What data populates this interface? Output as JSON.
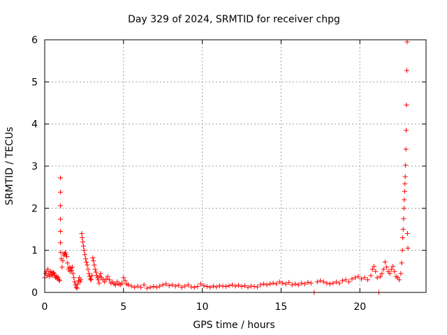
{
  "chart_data": {
    "type": "scatter",
    "title": "Day 329 of 2024, SRMTID for receiver chpg",
    "xlabel": "GPS time / hours",
    "ylabel": "SRMTID / TECUs",
    "xlim": [
      0,
      24.2
    ],
    "ylim": [
      0,
      6
    ],
    "xticks": [
      0,
      5,
      10,
      15,
      20
    ],
    "yticks": [
      0,
      1,
      2,
      3,
      4,
      5,
      6
    ],
    "grid": true,
    "marker": "+",
    "color": "#ff0000",
    "series": [
      {
        "name": "SRMTID",
        "points": [
          [
            0.0,
            0.35
          ],
          [
            0.05,
            0.45
          ],
          [
            0.1,
            0.5
          ],
          [
            0.15,
            0.4
          ],
          [
            0.2,
            0.55
          ],
          [
            0.25,
            0.45
          ],
          [
            0.3,
            0.38
          ],
          [
            0.35,
            0.5
          ],
          [
            0.4,
            0.42
          ],
          [
            0.45,
            0.48
          ],
          [
            0.5,
            0.4
          ],
          [
            0.55,
            0.47
          ],
          [
            0.6,
            0.45
          ],
          [
            0.65,
            0.4
          ],
          [
            0.7,
            0.35
          ],
          [
            0.75,
            0.38
          ],
          [
            0.8,
            0.33
          ],
          [
            0.85,
            0.36
          ],
          [
            0.9,
            0.3
          ],
          [
            0.95,
            0.28
          ],
          [
            1.0,
            2.72
          ],
          [
            1.0,
            2.38
          ],
          [
            1.0,
            2.06
          ],
          [
            1.0,
            1.74
          ],
          [
            1.0,
            1.45
          ],
          [
            1.0,
            1.18
          ],
          [
            1.02,
            0.95
          ],
          [
            1.05,
            0.8
          ],
          [
            1.1,
            0.6
          ],
          [
            1.15,
            0.75
          ],
          [
            1.2,
            0.88
          ],
          [
            1.25,
            0.92
          ],
          [
            1.3,
            0.95
          ],
          [
            1.35,
            0.9
          ],
          [
            1.4,
            0.85
          ],
          [
            1.45,
            0.7
          ],
          [
            1.5,
            0.55
          ],
          [
            1.55,
            0.6
          ],
          [
            1.6,
            0.5
          ],
          [
            1.65,
            0.58
          ],
          [
            1.7,
            0.52
          ],
          [
            1.75,
            0.6
          ],
          [
            1.8,
            0.45
          ],
          [
            1.85,
            0.35
          ],
          [
            1.9,
            0.25
          ],
          [
            1.95,
            0.18
          ],
          [
            2.0,
            0.12
          ],
          [
            2.05,
            0.1
          ],
          [
            2.1,
            0.2
          ],
          [
            2.15,
            0.28
          ],
          [
            2.2,
            0.35
          ],
          [
            2.25,
            0.25
          ],
          [
            2.3,
            0.3
          ],
          [
            2.35,
            1.4
          ],
          [
            2.38,
            1.3
          ],
          [
            2.42,
            1.2
          ],
          [
            2.46,
            1.1
          ],
          [
            2.5,
            1.0
          ],
          [
            2.55,
            0.9
          ],
          [
            2.6,
            0.8
          ],
          [
            2.65,
            0.72
          ],
          [
            2.7,
            0.65
          ],
          [
            2.75,
            0.55
          ],
          [
            2.8,
            0.45
          ],
          [
            2.85,
            0.38
          ],
          [
            2.9,
            0.32
          ],
          [
            2.95,
            0.3
          ],
          [
            3.0,
            0.4
          ],
          [
            3.05,
            0.82
          ],
          [
            3.1,
            0.75
          ],
          [
            3.15,
            0.65
          ],
          [
            3.2,
            0.55
          ],
          [
            3.25,
            0.48
          ],
          [
            3.3,
            0.4
          ],
          [
            3.35,
            0.35
          ],
          [
            3.4,
            0.3
          ],
          [
            3.45,
            0.22
          ],
          [
            3.5,
            0.38
          ],
          [
            3.55,
            0.45
          ],
          [
            3.6,
            0.35
          ],
          [
            3.7,
            0.3
          ],
          [
            3.8,
            0.25
          ],
          [
            3.9,
            0.32
          ],
          [
            4.0,
            0.38
          ],
          [
            4.1,
            0.3
          ],
          [
            4.2,
            0.22
          ],
          [
            4.3,
            0.25
          ],
          [
            4.4,
            0.2
          ],
          [
            4.5,
            0.18
          ],
          [
            4.6,
            0.25
          ],
          [
            4.7,
            0.2
          ],
          [
            4.8,
            0.18
          ],
          [
            4.9,
            0.22
          ],
          [
            5.0,
            0.35
          ],
          [
            5.1,
            0.28
          ],
          [
            5.2,
            0.2
          ],
          [
            5.3,
            0.18
          ],
          [
            5.5,
            0.15
          ],
          [
            5.7,
            0.12
          ],
          [
            5.9,
            0.15
          ],
          [
            6.1,
            0.12
          ],
          [
            6.3,
            0.18
          ],
          [
            6.5,
            0.1
          ],
          [
            6.7,
            0.12
          ],
          [
            6.9,
            0.14
          ],
          [
            7.1,
            0.12
          ],
          [
            7.3,
            0.15
          ],
          [
            7.5,
            0.18
          ],
          [
            7.7,
            0.2
          ],
          [
            7.9,
            0.16
          ],
          [
            8.1,
            0.18
          ],
          [
            8.3,
            0.15
          ],
          [
            8.5,
            0.17
          ],
          [
            8.7,
            0.12
          ],
          [
            8.9,
            0.15
          ],
          [
            9.1,
            0.18
          ],
          [
            9.3,
            0.13
          ],
          [
            9.5,
            0.12
          ],
          [
            9.7,
            0.14
          ],
          [
            9.9,
            0.2
          ],
          [
            10.1,
            0.16
          ],
          [
            10.3,
            0.14
          ],
          [
            10.5,
            0.12
          ],
          [
            10.7,
            0.15
          ],
          [
            10.9,
            0.13
          ],
          [
            11.1,
            0.16
          ],
          [
            11.3,
            0.15
          ],
          [
            11.5,
            0.14
          ],
          [
            11.7,
            0.16
          ],
          [
            11.9,
            0.18
          ],
          [
            12.1,
            0.15
          ],
          [
            12.3,
            0.17
          ],
          [
            12.5,
            0.14
          ],
          [
            12.7,
            0.16
          ],
          [
            12.9,
            0.12
          ],
          [
            13.1,
            0.15
          ],
          [
            13.3,
            0.14
          ],
          [
            13.5,
            0.13
          ],
          [
            13.7,
            0.18
          ],
          [
            13.9,
            0.2
          ],
          [
            14.1,
            0.18
          ],
          [
            14.3,
            0.2
          ],
          [
            14.5,
            0.22
          ],
          [
            14.7,
            0.2
          ],
          [
            14.9,
            0.25
          ],
          [
            15.1,
            0.22
          ],
          [
            15.3,
            0.2
          ],
          [
            15.5,
            0.24
          ],
          [
            15.7,
            0.18
          ],
          [
            15.9,
            0.2
          ],
          [
            16.1,
            0.18
          ],
          [
            16.3,
            0.22
          ],
          [
            16.5,
            0.2
          ],
          [
            16.7,
            0.24
          ],
          [
            16.9,
            0.22
          ],
          [
            17.1,
            0.0
          ],
          [
            17.3,
            0.25
          ],
          [
            17.5,
            0.28
          ],
          [
            17.7,
            0.25
          ],
          [
            17.9,
            0.22
          ],
          [
            18.1,
            0.2
          ],
          [
            18.3,
            0.22
          ],
          [
            18.5,
            0.25
          ],
          [
            18.7,
            0.22
          ],
          [
            18.9,
            0.28
          ],
          [
            19.1,
            0.3
          ],
          [
            19.3,
            0.25
          ],
          [
            19.5,
            0.32
          ],
          [
            19.7,
            0.35
          ],
          [
            19.9,
            0.38
          ],
          [
            20.1,
            0.32
          ],
          [
            20.3,
            0.35
          ],
          [
            20.5,
            0.3
          ],
          [
            20.7,
            0.4
          ],
          [
            20.8,
            0.55
          ],
          [
            20.9,
            0.62
          ],
          [
            21.0,
            0.5
          ],
          [
            21.1,
            0.35
          ],
          [
            21.2,
            0.0
          ],
          [
            21.3,
            0.38
          ],
          [
            21.4,
            0.45
          ],
          [
            21.5,
            0.55
          ],
          [
            21.6,
            0.72
          ],
          [
            21.7,
            0.6
          ],
          [
            21.8,
            0.5
          ],
          [
            21.9,
            0.45
          ],
          [
            22.0,
            0.55
          ],
          [
            22.1,
            0.62
          ],
          [
            22.2,
            0.5
          ],
          [
            22.3,
            0.38
          ],
          [
            22.4,
            0.35
          ],
          [
            22.5,
            0.3
          ],
          [
            22.6,
            0.45
          ],
          [
            22.65,
            0.7
          ],
          [
            22.7,
            1.0
          ],
          [
            22.72,
            1.3
          ],
          [
            22.75,
            1.5
          ],
          [
            22.78,
            1.75
          ],
          [
            22.8,
            2.0
          ],
          [
            22.82,
            2.2
          ],
          [
            22.84,
            2.4
          ],
          [
            22.86,
            2.58
          ],
          [
            22.88,
            2.75
          ],
          [
            22.9,
            3.02
          ],
          [
            22.92,
            3.4
          ],
          [
            22.94,
            3.85
          ],
          [
            22.96,
            4.45
          ],
          [
            22.98,
            5.27
          ],
          [
            23.0,
            5.95
          ],
          [
            23.02,
            1.4
          ],
          [
            23.05,
            1.05
          ]
        ]
      }
    ]
  }
}
